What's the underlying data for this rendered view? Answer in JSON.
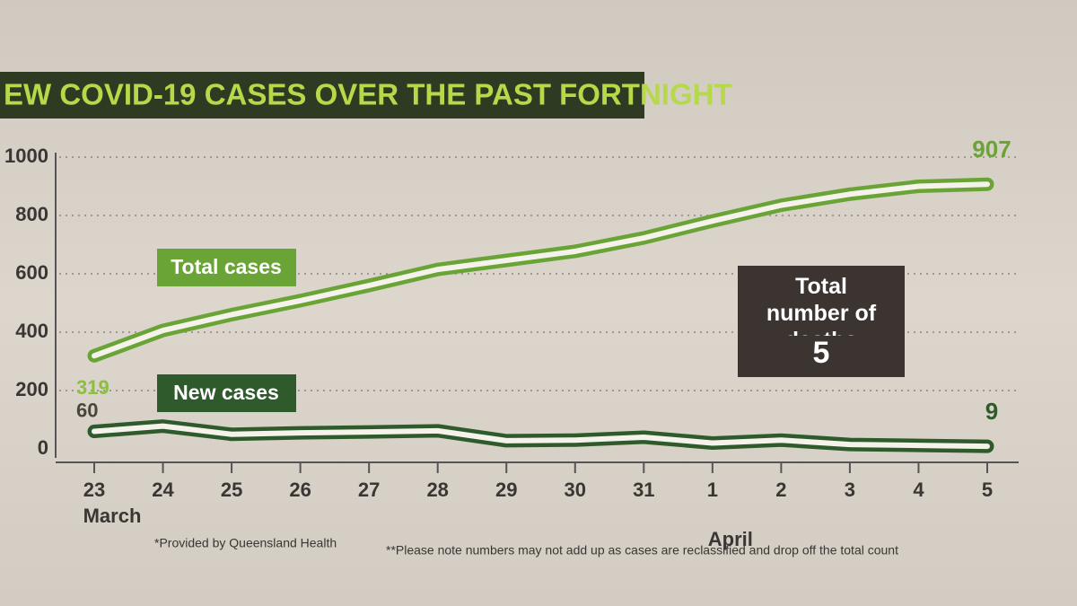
{
  "chart_data": {
    "type": "line",
    "title": "EW COVID-19 CASES OVER THE PAST FORTNIGHT",
    "categories": [
      "23",
      "24",
      "25",
      "26",
      "27",
      "28",
      "29",
      "30",
      "31",
      "1",
      "2",
      "3",
      "4",
      "5"
    ],
    "month_labels": [
      {
        "text": "March",
        "at": 0
      },
      {
        "text": "April",
        "at": 9
      }
    ],
    "series": [
      {
        "name": "Total cases",
        "color": "#6aa436",
        "values": [
          319,
          406,
          460,
          508,
          560,
          615,
          646,
          677,
          723,
          781,
          835,
          873,
          900,
          907
        ]
      },
      {
        "name": "New cases",
        "color": "#2f5a2c",
        "values": [
          60,
          78,
          50,
          55,
          58,
          62,
          28,
          30,
          40,
          20,
          30,
          15,
          12,
          9
        ]
      }
    ],
    "ylim": [
      0,
      1000
    ],
    "yticks": [
      0,
      200,
      400,
      600,
      800,
      1000
    ],
    "grid": true,
    "annotation": {
      "text": "Total number of deaths",
      "value": 5
    },
    "footnotes": [
      "*Provided by Queensland Health",
      "**Please note numbers may not add up as cases are reclassified and drop off the total count"
    ]
  }
}
